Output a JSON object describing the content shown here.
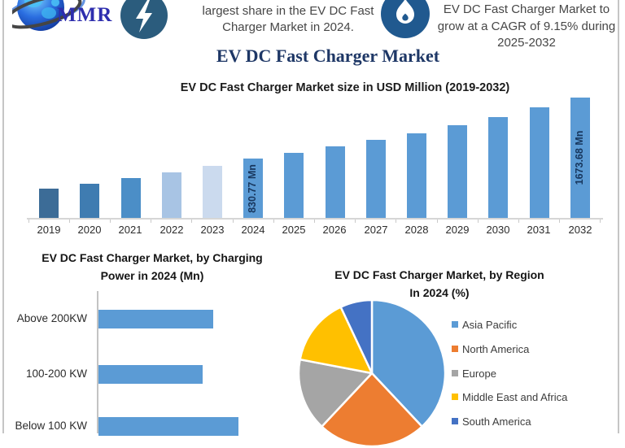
{
  "frame": {
    "border_color": "#c5c5c5",
    "background": "#ffffff"
  },
  "header": {
    "logo": {
      "text": "MMR",
      "text_color": "#2e2eae",
      "icon": "globe-swoosh-logo"
    },
    "callout1": {
      "icon": "lightning-icon",
      "icon_bg": "#2b5c7d",
      "lines": [
        "largest share in the EV DC Fast",
        "Charger Market in 2024."
      ]
    },
    "callout2": {
      "icon": "flame-icon",
      "icon_bg": "#20598f",
      "lines": [
        "EV DC Fast Charger Market to",
        "grow at a CAGR of 9.15% during",
        "2025-2032"
      ],
      "cagr": "9.15%",
      "period": "2025-2032"
    }
  },
  "page_title": "EV DC Fast Charger Market",
  "chart_data": [
    {
      "type": "bar",
      "title": "EV DC Fast Charger Market size in USD Million (2019-2032)",
      "xlabel": "",
      "ylabel": "USD Million",
      "ylim": [
        0,
        1700
      ],
      "grid": false,
      "categories": [
        "2019",
        "2020",
        "2021",
        "2022",
        "2023",
        "2024",
        "2025",
        "2026",
        "2027",
        "2028",
        "2029",
        "2030",
        "2031",
        "2032"
      ],
      "values": [
        410,
        480,
        550,
        630,
        725,
        830.77,
        906.79,
        989.76,
        1080.33,
        1179.18,
        1287.07,
        1404.84,
        1533.38,
        1673.68
      ],
      "values_note": "2024 and 2032 bars carry data labels; other values estimated from bar heights / stated 9.15% CAGR",
      "bar_labels": {
        "2024": "830.77 Mn",
        "2032": "1673.68 Mn"
      },
      "annotation_color": "#17365d",
      "bar_colors": [
        "#3c6c97",
        "#3f7cb1",
        "#4b8ec7",
        "#a8c4e4",
        "#cbdaee",
        "#5b9bd5",
        "#5b9bd5",
        "#5b9bd5",
        "#5b9bd5",
        "#5b9bd5",
        "#5b9bd5",
        "#5b9bd5",
        "#5b9bd5",
        "#5b9bd5"
      ]
    },
    {
      "type": "bar",
      "orientation": "horizontal",
      "title": "EV DC Fast Charger Market, by Charging Power in 2024 (Mn)",
      "title_lines": [
        "EV DC Fast Charger Market, by Charging",
        "Power in 2024 (Mn)"
      ],
      "categories": [
        "Above 200KW",
        "100-200 KW",
        "Below 100 KW"
      ],
      "values": [
        266,
        241,
        324
      ],
      "values_note": "no numeric labels shown; values estimated from relative bar lengths (Mn)",
      "bar_color": "#5b9bd5",
      "grid": false
    },
    {
      "type": "pie",
      "title": "EV DC Fast Charger Market, by Region In 2024 (%)",
      "title_lines": [
        "EV DC Fast Charger Market, by Region",
        "In 2024 (%)"
      ],
      "labels": [
        "Asia Pacific",
        "North America",
        "Europe",
        "Middle East and Africa",
        "South America"
      ],
      "values": [
        38,
        24,
        16,
        15,
        7
      ],
      "values_note": "no numeric labels shown; percentages estimated from slice angles",
      "colors": [
        "#5b9bd5",
        "#ed7d31",
        "#a5a5a5",
        "#ffc000",
        "#4472c4"
      ],
      "legend_position": "right",
      "start_angle": "top",
      "direction": "clockwise"
    }
  ]
}
